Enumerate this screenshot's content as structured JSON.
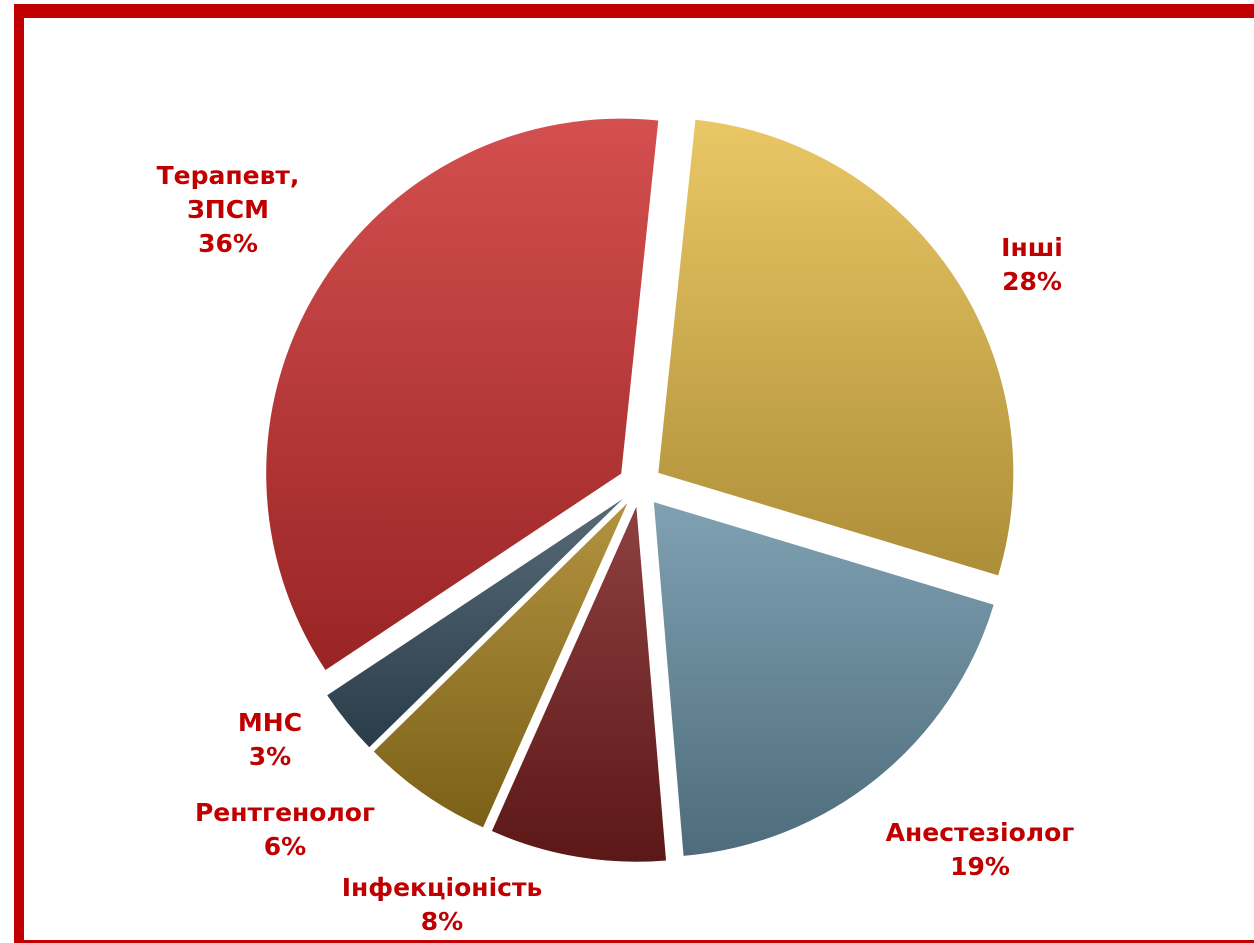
{
  "chart_data": {
    "type": "pie",
    "categories": [
      "Інші",
      "Анестезіолог",
      "Інфекціоність",
      "Рентгенолог",
      "МНС",
      "Терапевт, ЗПСМ"
    ],
    "values": [
      28,
      19,
      8,
      6,
      3,
      36
    ],
    "value_labels": [
      "28%",
      "19%",
      "8%",
      "6%",
      "3%",
      "36%"
    ],
    "colors": [
      "#e6bd4a",
      "#6890a4",
      "#7a1e1e",
      "#a4801e",
      "#385060",
      "#cc3030"
    ]
  }
}
